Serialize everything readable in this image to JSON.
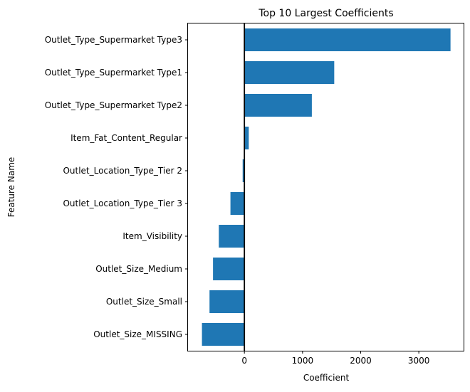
{
  "chart_data": {
    "type": "bar",
    "orientation": "horizontal",
    "title": "Top 10 Largest Coefficients",
    "xlabel": "Coefficient",
    "ylabel": "Feature Name",
    "xlim": [
      -970,
      3770
    ],
    "xticks": [
      0,
      1000,
      2000,
      3000
    ],
    "xtick_labels": [
      "0",
      "1000",
      "2000",
      "3000"
    ],
    "categories": [
      "Outlet_Type_Supermarket Type3",
      "Outlet_Type_Supermarket Type1",
      "Outlet_Type_Supermarket Type2",
      "Item_Fat_Content_Regular",
      "Outlet_Location_Type_Tier 2",
      "Outlet_Location_Type_Tier 3",
      "Item_Visibility",
      "Outlet_Size_Medium",
      "Outlet_Size_Small",
      "Outlet_Size_MISSING"
    ],
    "values": [
      3545,
      1545,
      1160,
      75,
      -30,
      -240,
      -440,
      -540,
      -600,
      -730
    ],
    "bar_color": "#1f77b4",
    "zero_line": true,
    "zero_line_color": "#000000",
    "grid": false,
    "legend": false
  }
}
